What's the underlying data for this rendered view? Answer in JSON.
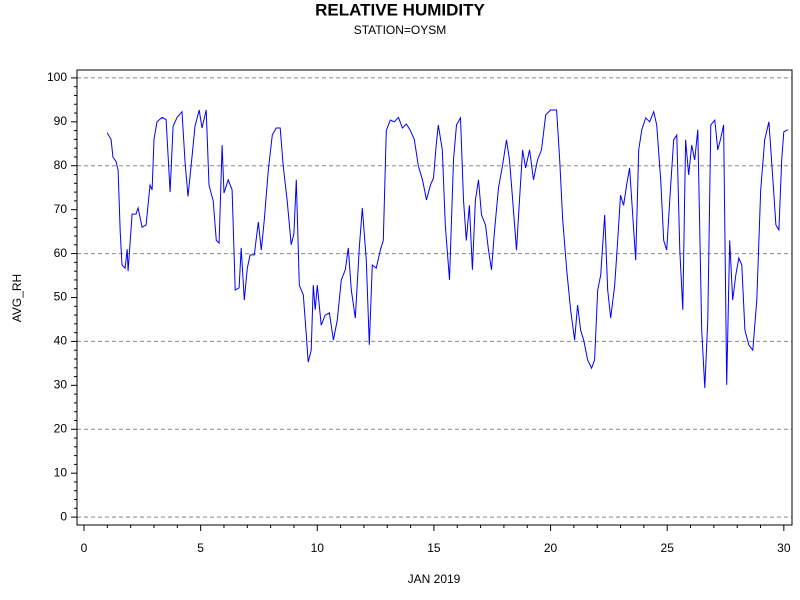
{
  "chart_data": {
    "type": "line",
    "title": "RELATIVE HUMIDITY",
    "subtitle": "STATION=OYSM",
    "x_label": "JAN 2019",
    "y_label": "AVG_RH",
    "xlim": [
      -0.3,
      30.35
    ],
    "xticks": [
      0,
      5,
      10,
      15,
      20,
      25,
      30
    ],
    "ylim": [
      -1.8,
      101.8
    ],
    "yticks": [
      0,
      10,
      20,
      30,
      40,
      50,
      60,
      70,
      80,
      90,
      100
    ],
    "grid_lines": [
      0,
      20,
      40,
      60,
      80,
      100
    ],
    "x": [
      0.99,
      1.16,
      1.24,
      1.37,
      1.46,
      1.55,
      1.63,
      1.76,
      1.85,
      1.89,
      2.06,
      2.23,
      2.32,
      2.49,
      2.66,
      2.83,
      2.92,
      3.0,
      3.13,
      3.35,
      3.52,
      3.69,
      3.82,
      3.99,
      4.2,
      4.33,
      4.46,
      4.64,
      4.76,
      4.94,
      5.06,
      5.24,
      5.36,
      5.54,
      5.67,
      5.79,
      5.92,
      6.0,
      6.18,
      6.35,
      6.48,
      6.65,
      6.74,
      6.87,
      7.0,
      7.12,
      7.3,
      7.47,
      7.6,
      7.73,
      7.9,
      8.07,
      8.24,
      8.41,
      8.54,
      8.71,
      8.88,
      9.0,
      9.1,
      9.23,
      9.4,
      9.53,
      9.61,
      9.74,
      9.83,
      9.91,
      10.0,
      10.17,
      10.34,
      10.52,
      10.69,
      10.86,
      11.03,
      11.2,
      11.33,
      11.46,
      11.63,
      11.8,
      11.93,
      12.1,
      12.23,
      12.36,
      12.53,
      12.7,
      12.83,
      12.96,
      13.13,
      13.3,
      13.48,
      13.65,
      13.82,
      13.99,
      14.16,
      14.33,
      14.51,
      14.68,
      14.85,
      14.98,
      15.1,
      15.19,
      15.36,
      15.49,
      15.67,
      15.84,
      15.97,
      16.14,
      16.27,
      16.39,
      16.52,
      16.65,
      16.78,
      16.91,
      17.04,
      17.21,
      17.34,
      17.47,
      17.6,
      17.77,
      17.94,
      18.11,
      18.24,
      18.37,
      18.54,
      18.67,
      18.8,
      18.93,
      19.1,
      19.27,
      19.44,
      19.61,
      19.79,
      20.0,
      20.26,
      20.39,
      20.52,
      20.69,
      20.86,
      21.03,
      21.16,
      21.29,
      21.42,
      21.59,
      21.76,
      21.89,
      22.02,
      22.15,
      22.32,
      22.45,
      22.58,
      22.75,
      22.88,
      23.0,
      23.13,
      23.26,
      23.39,
      23.52,
      23.65,
      23.78,
      23.91,
      24.08,
      24.25,
      24.42,
      24.55,
      24.72,
      24.85,
      24.98,
      25.15,
      25.28,
      25.41,
      25.54,
      25.67,
      25.79,
      25.92,
      26.05,
      26.18,
      26.31,
      26.48,
      26.61,
      26.74,
      26.87,
      27.04,
      27.17,
      27.3,
      27.42,
      27.55,
      27.68,
      27.81,
      27.94,
      28.07,
      28.2,
      28.33,
      28.5,
      28.67,
      28.84,
      29.01,
      29.18,
      29.36,
      29.53,
      29.66,
      29.79,
      29.91,
      30.0,
      30.17
    ],
    "series": [
      {
        "name": "AVG_RH",
        "color": "#0000ff",
        "values": [
          87.5,
          86,
          82,
          81,
          79,
          65,
          57.4,
          56.7,
          61,
          56,
          69,
          69,
          70.4,
          66,
          66.5,
          75.6,
          74.5,
          86,
          90,
          91,
          90.5,
          74,
          89,
          91,
          92.3,
          81,
          73,
          82.5,
          89,
          92.7,
          88.6,
          92.7,
          75.6,
          72,
          63,
          62.4,
          84.7,
          73.8,
          76.8,
          74.5,
          51.7,
          52.2,
          61.3,
          49.4,
          56.7,
          59.7,
          59.7,
          67.2,
          60.8,
          67.7,
          79,
          87,
          88.6,
          88.6,
          80,
          72,
          62,
          64.5,
          76.8,
          52.8,
          50.6,
          41.5,
          35.3,
          38,
          52.8,
          47.2,
          52.8,
          43.7,
          46,
          46.5,
          40.3,
          44.9,
          54,
          56.3,
          61.3,
          51.7,
          45.3,
          61.3,
          70.4,
          58.5,
          39.2,
          57.4,
          56.7,
          60.8,
          63,
          88,
          90.4,
          90,
          91,
          88.6,
          89.5,
          88,
          86,
          80,
          76.8,
          72.2,
          75.6,
          77.2,
          84.7,
          89.3,
          83.6,
          66.5,
          54,
          81.3,
          89.3,
          90.9,
          72.2,
          63,
          71,
          56.3,
          72.2,
          76.8,
          68.8,
          66.5,
          60.8,
          56.3,
          65.4,
          75,
          80,
          85.9,
          81.3,
          72.7,
          60.8,
          72.2,
          83.6,
          79.5,
          83.6,
          76.8,
          81.3,
          83.6,
          91.6,
          92.7,
          92.7,
          81.3,
          67.7,
          56.3,
          47.2,
          40.3,
          48.3,
          42.6,
          40.3,
          35.8,
          33.9,
          35.8,
          51.7,
          55.1,
          68.8,
          51.7,
          45.3,
          52.8,
          63,
          73.3,
          71,
          75.6,
          79.5,
          68.8,
          58.5,
          83.6,
          88.2,
          90.9,
          90,
          92.3,
          89.3,
          76.8,
          63,
          60.8,
          75.6,
          85.9,
          87,
          60.8,
          47.2,
          85.9,
          77.9,
          84.7,
          81.3,
          88.2,
          42.6,
          29.4,
          44.9,
          89.3,
          90.4,
          83.6,
          86.3,
          89.3,
          30.1,
          63,
          49.4,
          55.1,
          59,
          57.4,
          42.6,
          39.2,
          38,
          49.4,
          74.5,
          85.9,
          90,
          76.8,
          66.5,
          65.4,
          81.3,
          87.7,
          88.2
        ]
      }
    ]
  }
}
